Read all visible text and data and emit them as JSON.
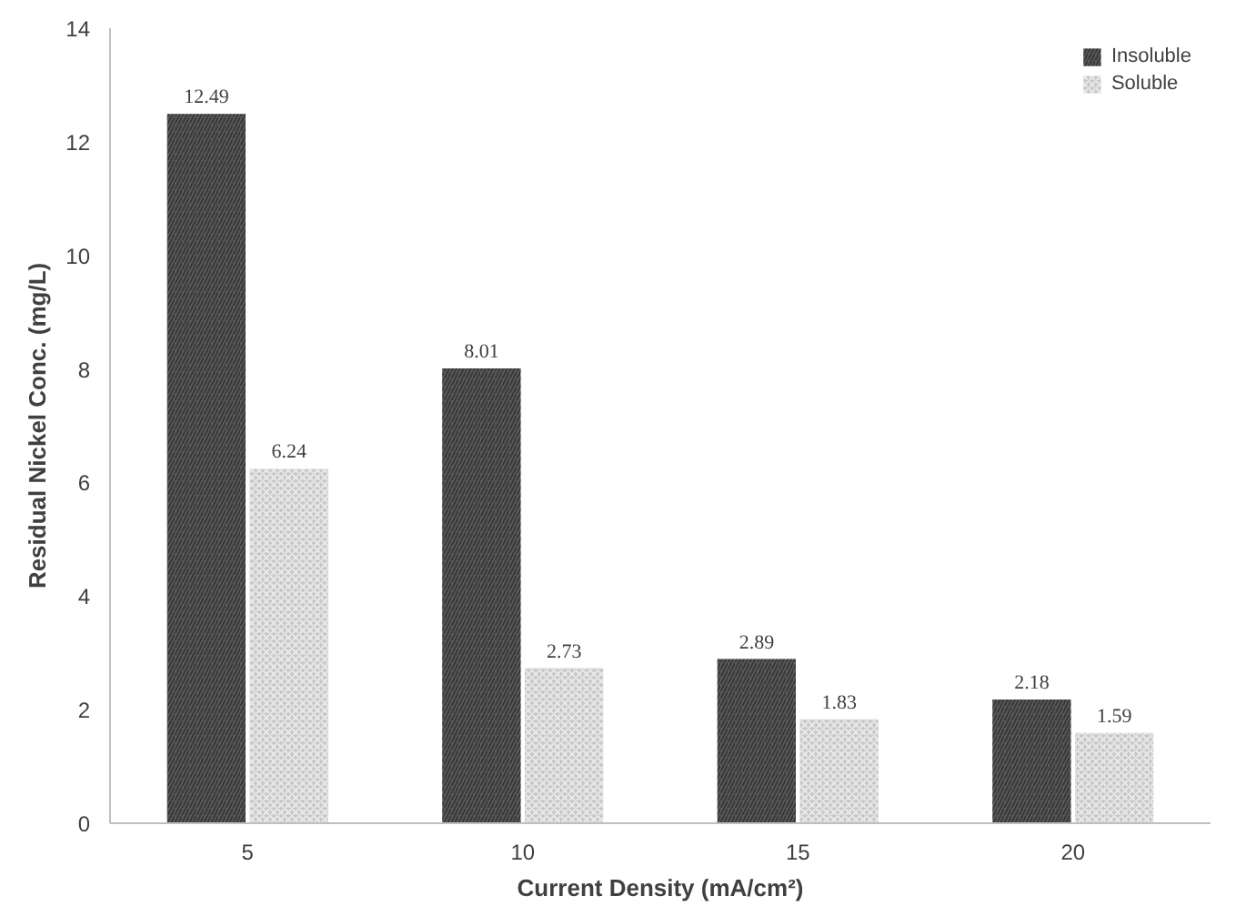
{
  "chart_data": {
    "type": "bar",
    "xlabel": "Current Density (mA/cm²)",
    "ylabel": "Residual Nickel Conc. (mg/L)",
    "categories": [
      "5",
      "10",
      "15",
      "20"
    ],
    "series": [
      {
        "name": "Insoluble",
        "color": "#5a5a5a",
        "values": [
          12.49,
          8.01,
          2.89,
          2.18
        ]
      },
      {
        "name": "Soluble",
        "color": "#c8c8c8",
        "values": [
          6.24,
          2.73,
          1.83,
          1.59
        ]
      }
    ],
    "ylim": [
      0,
      14
    ],
    "yticks": [
      0,
      2,
      4,
      6,
      8,
      10,
      12,
      14
    ],
    "grid": false,
    "legend": "top right",
    "data_labels": true
  }
}
